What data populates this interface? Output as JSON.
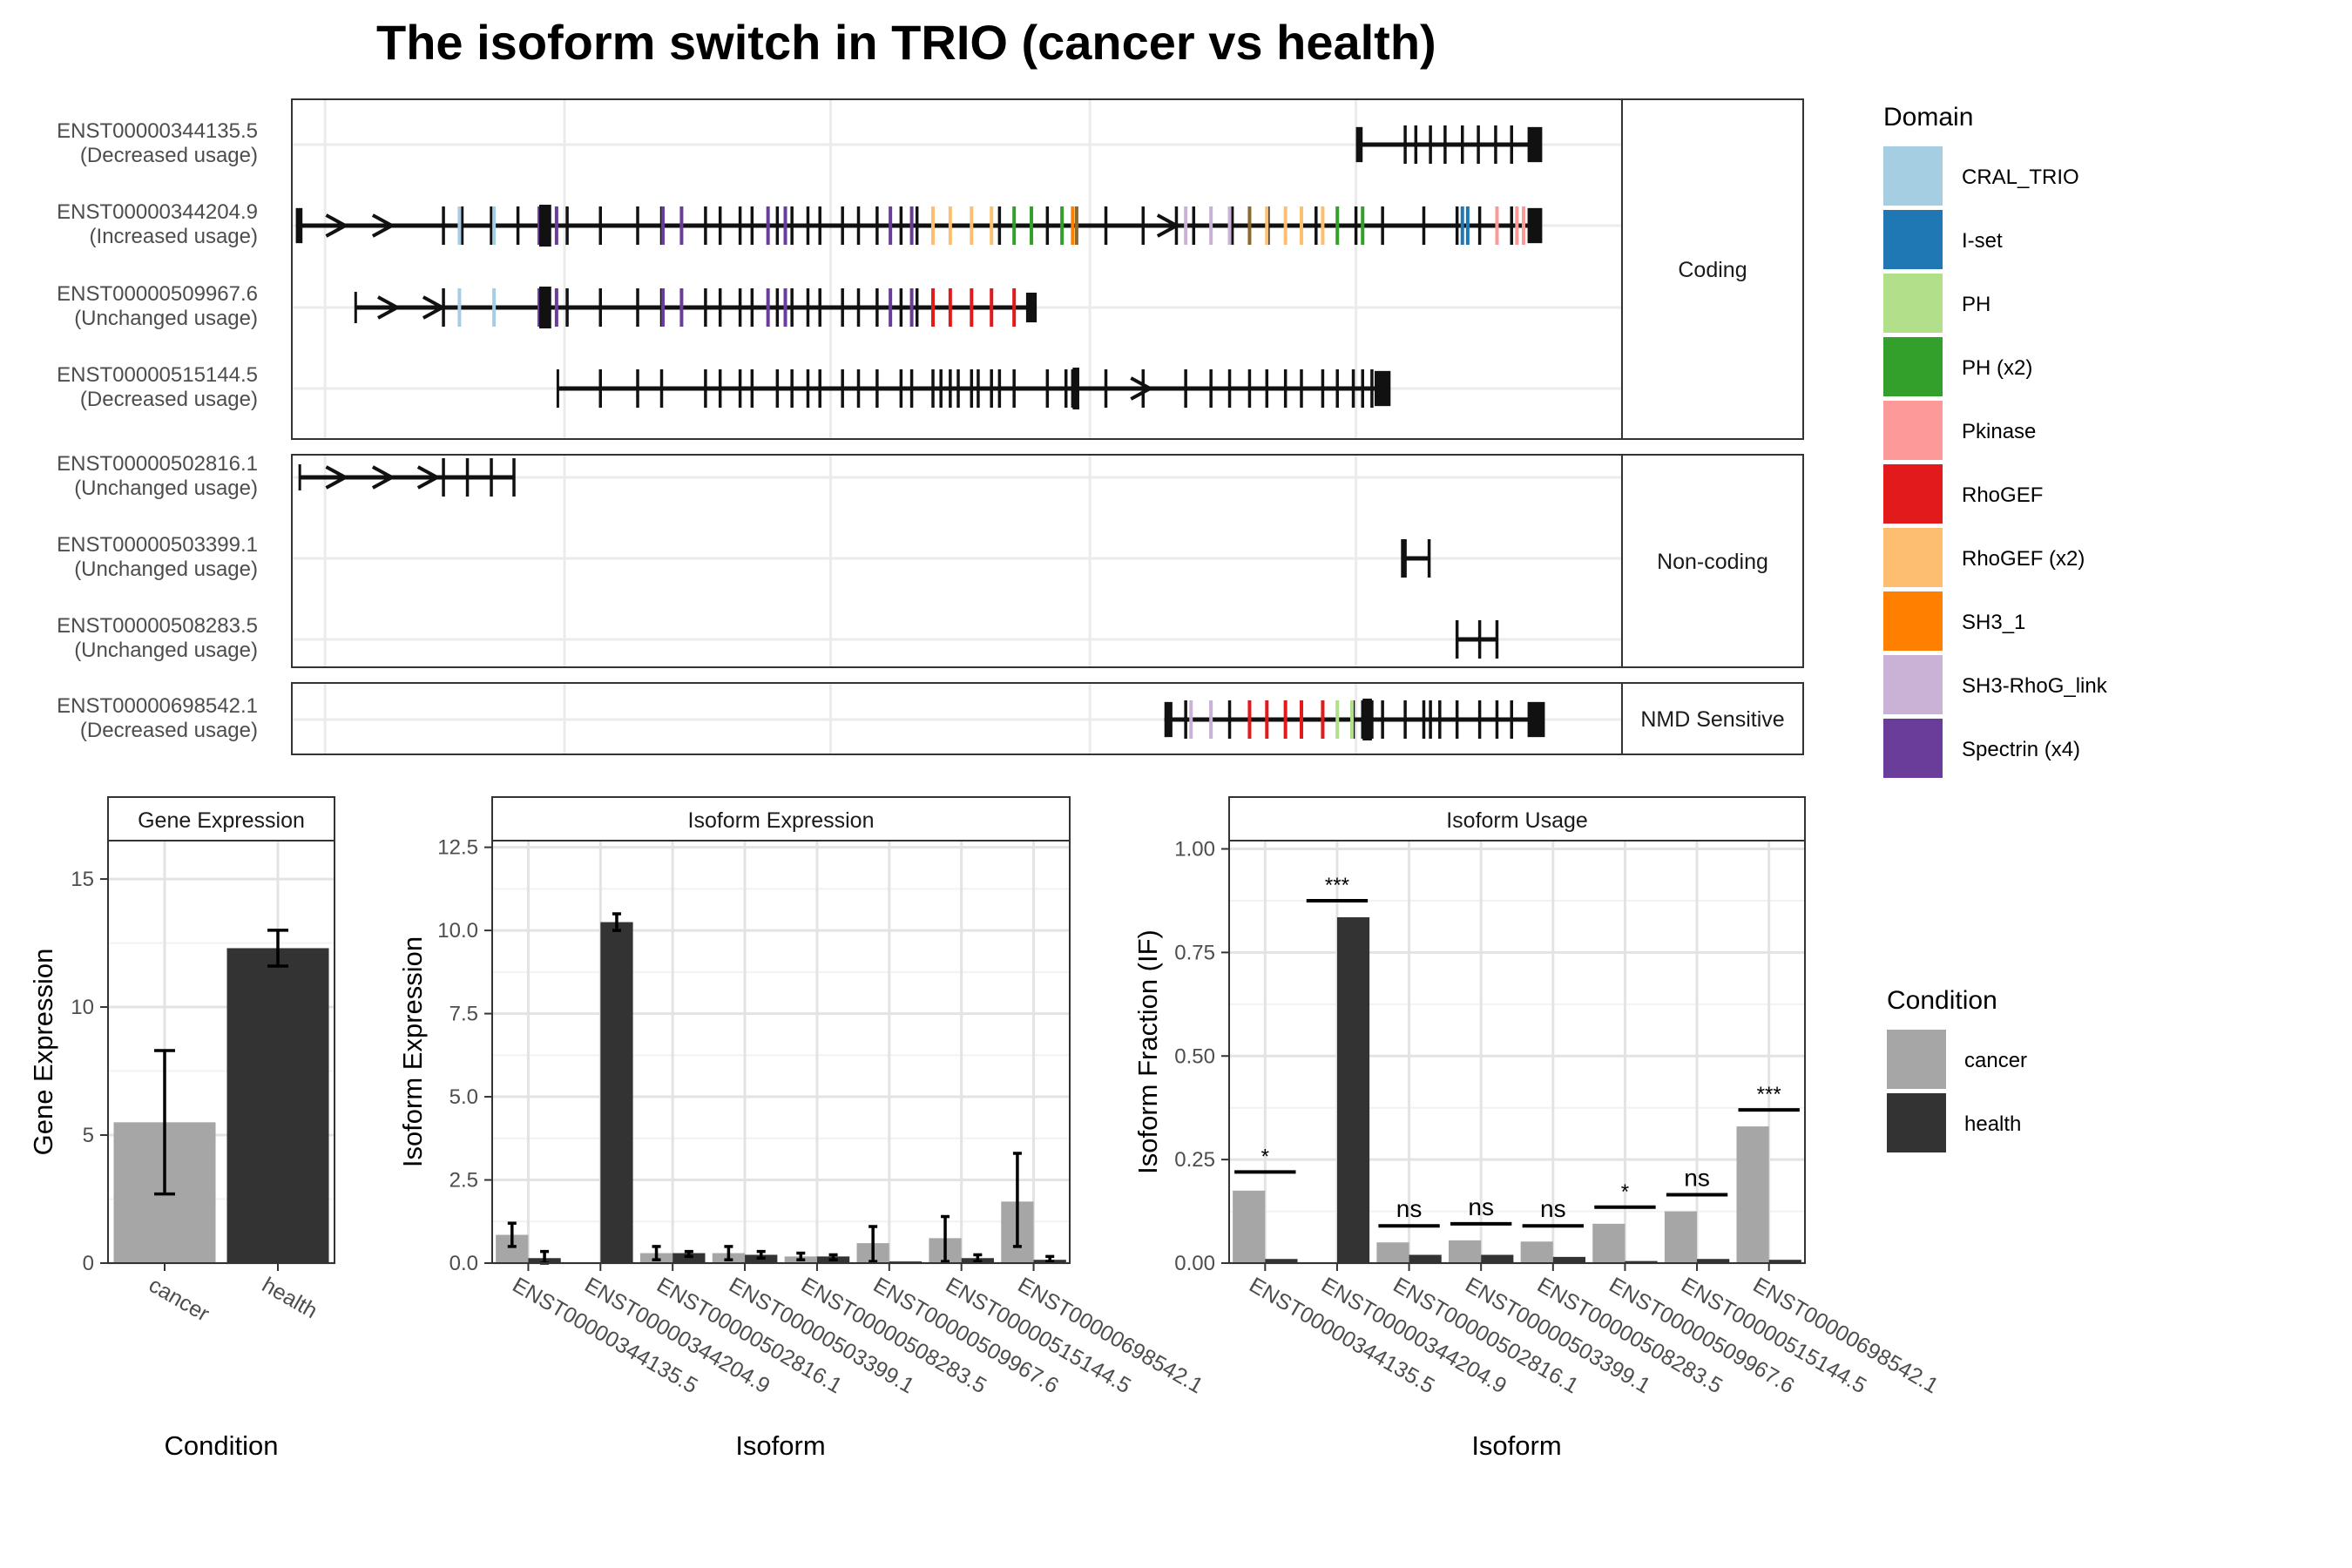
{
  "title": "The isoform switch in TRIO (cancer vs health)",
  "structure": {
    "isoforms": [
      {
        "id": "ENST00000344135.5",
        "usage": "(Decreased usage)",
        "group": "Coding",
        "introns": [
          [
            800,
            930
          ]
        ],
        "exons": [
          [
            800,
            805,
            26
          ],
          [
            929,
            940,
            26
          ]
        ],
        "tics": [
          837,
          845,
          856,
          867,
          880,
          892,
          905,
          917
        ]
      },
      {
        "id": "ENST00000344204.9",
        "usage": "(Increased usage)",
        "group": "Coding",
        "introns": [
          [
            6,
            930
          ]
        ],
        "exons": [
          [
            3,
            8,
            26
          ],
          [
            929,
            940,
            26
          ]
        ],
        "arrows": [
          35,
          70,
          660
        ],
        "tics": [
          114,
          128,
          150,
          170,
          207,
          232,
          260,
          278,
          311,
          322,
          337,
          346,
          365,
          376,
          388,
          397,
          414,
          426,
          440,
          458,
          470,
          532,
          568,
          612,
          640,
          665,
          678,
          707,
          734,
          770,
          800,
          820,
          851,
          876,
          893,
          917
        ],
        "tics_colored": [
          [
            126,
            "#a6cee3"
          ],
          [
            152,
            "#a6cee3"
          ],
          [
            186,
            "#6a3d9a"
          ],
          [
            199,
            "#6a3d9a"
          ],
          [
            279,
            "#6a3d9a"
          ],
          [
            293,
            "#6a3d9a"
          ],
          [
            358,
            "#6a3d9a"
          ],
          [
            371,
            "#6a3d9a"
          ],
          [
            450,
            "#6a3d9a"
          ],
          [
            466,
            "#6a3d9a"
          ],
          [
            482,
            "#fdbf6f"
          ],
          [
            495,
            "#fdbf6f"
          ],
          [
            511,
            "#fdbf6f"
          ],
          [
            526,
            "#fdbf6f"
          ],
          [
            543,
            "#33a02c"
          ],
          [
            556,
            "#33a02c"
          ],
          [
            579,
            "#33a02c"
          ],
          [
            587,
            "#ff7f00"
          ],
          [
            590,
            "#8c6a2e"
          ],
          [
            672,
            "#cab2d6"
          ],
          [
            691,
            "#cab2d6"
          ],
          [
            705,
            "#cab2d6"
          ],
          [
            720,
            "#8c6a2e"
          ],
          [
            733,
            "#fdbf6f"
          ],
          [
            747,
            "#fdbf6f"
          ],
          [
            759,
            "#fdbf6f"
          ],
          [
            775,
            "#fdbf6f"
          ],
          [
            786,
            "#33a02c"
          ],
          [
            805,
            "#33a02c"
          ],
          [
            880,
            "#1f78b4"
          ],
          [
            884,
            "#1f78b4"
          ],
          [
            906,
            "#fb9a99"
          ],
          [
            921,
            "#fb9a99"
          ],
          [
            926,
            "#fb9a99"
          ]
        ],
        "block": [
          186,
          195
        ]
      },
      {
        "id": "ENST00000509967.6",
        "usage": "(Unchanged usage)",
        "group": "Coding",
        "introns": [
          [
            48,
            557
          ]
        ],
        "exons": [
          [
            552,
            560,
            22
          ]
        ],
        "arrows": [
          74,
          108
        ],
        "start_tick": [
          48,
          36
        ],
        "tics": [
          114,
          207,
          232,
          260,
          278,
          311,
          322,
          337,
          346,
          365,
          376,
          388,
          397,
          414,
          426,
          440,
          458,
          470
        ],
        "tics_colored": [
          [
            126,
            "#a6cee3"
          ],
          [
            152,
            "#a6cee3"
          ],
          [
            186,
            "#6a3d9a"
          ],
          [
            199,
            "#6a3d9a"
          ],
          [
            279,
            "#6a3d9a"
          ],
          [
            293,
            "#6a3d9a"
          ],
          [
            358,
            "#6a3d9a"
          ],
          [
            371,
            "#6a3d9a"
          ],
          [
            450,
            "#6a3d9a"
          ],
          [
            466,
            "#6a3d9a"
          ],
          [
            482,
            "#e31a1c"
          ],
          [
            495,
            "#e31a1c"
          ],
          [
            511,
            "#e31a1c"
          ],
          [
            526,
            "#e31a1c"
          ],
          [
            543,
            "#e31a1c"
          ]
        ],
        "block": [
          186,
          195
        ]
      },
      {
        "id": "ENST00000515144.5",
        "usage": "(Decreased usage)",
        "group": "Coding",
        "introns": [
          [
            200,
            815
          ]
        ],
        "exons": [
          [
            814,
            826,
            26
          ]
        ],
        "arrows": [
          640
        ],
        "start_tick": [
          200,
          44
        ],
        "tics": [
          232,
          260,
          278,
          311,
          322,
          337,
          346,
          365,
          376,
          388,
          397,
          414,
          426,
          440,
          458,
          466,
          482,
          488,
          495,
          501,
          511,
          516,
          526,
          532,
          543,
          568,
          582,
          587,
          612,
          640,
          672,
          691,
          705,
          720,
          733,
          747,
          759,
          775,
          786,
          798,
          805,
          812
        ],
        "tics_colored": [],
        "block": [
          587,
          592
        ]
      },
      {
        "id": "ENST00000502816.1",
        "usage": "(Unchanged usage)",
        "group": "Non-coding",
        "introns": [
          [
            6,
            167
          ]
        ],
        "exons": [],
        "arrows": [
          35,
          70,
          104
        ],
        "start_tick": [
          6,
          30
        ],
        "tics": [
          114,
          132,
          150,
          167
        ],
        "tics_colored": []
      },
      {
        "id": "ENST00000503399.1",
        "usage": "(Unchanged usage)",
        "group": "Non-coding",
        "introns": [
          [
            835,
            855
          ]
        ],
        "exons": [],
        "tics": [
          835,
          837,
          855
        ],
        "tics_colored": []
      },
      {
        "id": "ENST00000508283.5",
        "usage": "(Unchanged usage)",
        "group": "Non-coding",
        "introns": [
          [
            876,
            906
          ]
        ],
        "exons": [],
        "tics": [
          876,
          893,
          906
        ],
        "tics_colored": []
      },
      {
        "id": "ENST00000698542.1",
        "usage": "(Decreased usage)",
        "group": "NMD Sensitive",
        "introns": [
          [
            656,
            930
          ]
        ],
        "exons": [
          [
            656,
            662,
            26
          ],
          [
            929,
            942,
            26
          ]
        ],
        "tics": [
          672,
          691,
          705,
          720,
          733,
          747,
          759,
          775,
          786,
          798,
          805,
          812,
          820,
          837,
          851,
          856,
          863,
          876,
          893,
          906,
          917
        ],
        "tics_colored": [
          [
            676,
            "#cab2d6"
          ],
          [
            691,
            "#cab2d6"
          ],
          [
            720,
            "#e31a1c"
          ],
          [
            733,
            "#e31a1c"
          ],
          [
            747,
            "#e31a1c"
          ],
          [
            759,
            "#e31a1c"
          ],
          [
            775,
            "#e31a1c"
          ],
          [
            786,
            "#b2df8a"
          ],
          [
            797,
            "#b2df8a"
          ]
        ],
        "block": [
          805,
          812
        ]
      }
    ],
    "groups": [
      "Coding",
      "Non-coding",
      "NMD Sensitive"
    ]
  },
  "domain_legend": {
    "title": "Domain",
    "items": [
      {
        "label": "CRAL_TRIO",
        "color": "#a6cee3"
      },
      {
        "label": "I-set",
        "color": "#1f78b4"
      },
      {
        "label": "PH",
        "color": "#b2df8a"
      },
      {
        "label": "PH (x2)",
        "color": "#33a02c"
      },
      {
        "label": "Pkinase",
        "color": "#fb9a99"
      },
      {
        "label": "RhoGEF",
        "color": "#e31a1c"
      },
      {
        "label": "RhoGEF (x2)",
        "color": "#fdbf6f"
      },
      {
        "label": "SH3_1",
        "color": "#ff7f00"
      },
      {
        "label": "SH3-RhoG_link",
        "color": "#cab2d6"
      },
      {
        "label": "Spectrin (x4)",
        "color": "#6a3d9a"
      }
    ]
  },
  "condition_legend": {
    "title": "Condition",
    "items": [
      {
        "label": "cancer",
        "color": "#a6a6a6"
      },
      {
        "label": "health",
        "color": "#333333"
      }
    ]
  },
  "chart_data": [
    {
      "type": "bar",
      "strip": "Gene Expression",
      "xlabel": "Condition",
      "ylabel": "Gene Expression",
      "ylim": [
        0,
        16.5
      ],
      "yticks": [
        0,
        5,
        10,
        15
      ],
      "categories": [
        "cancer",
        "health"
      ],
      "values": [
        5.5,
        12.3
      ],
      "errors": [
        [
          2.7,
          8.3
        ],
        [
          11.6,
          13.0
        ]
      ]
    },
    {
      "type": "bar",
      "strip": "Isoform Expression",
      "xlabel": "Isoform",
      "ylabel": "Isoform Expression",
      "ylim": [
        0,
        12.7
      ],
      "yticks": [
        0.0,
        2.5,
        5.0,
        7.5,
        10.0,
        12.5
      ],
      "ytick_labels": [
        "0.0",
        "2.5",
        "5.0",
        "7.5",
        "10.0",
        "12.5"
      ],
      "categories": [
        "ENST00000344135.5",
        "ENST00000344204.9",
        "ENST00000502816.1",
        "ENST00000503399.1",
        "ENST00000508283.5",
        "ENST00000509967.6",
        "ENST00000515144.5",
        "ENST00000698542.1"
      ],
      "series": [
        {
          "name": "cancer",
          "values": [
            0.85,
            0.0,
            0.3,
            0.3,
            0.2,
            0.6,
            0.75,
            1.85
          ],
          "errors": [
            [
              0.5,
              1.2
            ],
            null,
            [
              0.1,
              0.5
            ],
            [
              0.1,
              0.5
            ],
            [
              0.1,
              0.3
            ],
            [
              0.05,
              1.1
            ],
            [
              0.05,
              1.4
            ],
            [
              0.5,
              3.3
            ]
          ]
        },
        {
          "name": "health",
          "values": [
            0.15,
            10.25,
            0.3,
            0.25,
            0.2,
            0.05,
            0.15,
            0.1
          ],
          "errors": [
            [
              0.0,
              0.35
            ],
            [
              10.0,
              10.5
            ],
            [
              0.2,
              0.35
            ],
            [
              0.15,
              0.35
            ],
            [
              0.1,
              0.25
            ],
            null,
            [
              0.05,
              0.25
            ],
            [
              0.05,
              0.2
            ]
          ]
        }
      ]
    },
    {
      "type": "bar",
      "strip": "Isoform Usage",
      "xlabel": "Isoform",
      "ylabel": "Isoform Fraction (IF)",
      "ylim": [
        0,
        1.02
      ],
      "yticks": [
        0.0,
        0.25,
        0.5,
        0.75,
        1.0
      ],
      "ytick_labels": [
        "0.00",
        "0.25",
        "0.50",
        "0.75",
        "1.00"
      ],
      "categories": [
        "ENST00000344135.5",
        "ENST00000344204.9",
        "ENST00000502816.1",
        "ENST00000503399.1",
        "ENST00000508283.5",
        "ENST00000509967.6",
        "ENST00000515144.5",
        "ENST00000698542.1"
      ],
      "series": [
        {
          "name": "cancer",
          "values": [
            0.175,
            0.0,
            0.05,
            0.055,
            0.052,
            0.095,
            0.125,
            0.33
          ]
        },
        {
          "name": "health",
          "values": [
            0.01,
            0.835,
            0.02,
            0.02,
            0.015,
            0.005,
            0.01,
            0.008
          ]
        }
      ],
      "significance": [
        "*",
        "***",
        "ns",
        "ns",
        "ns",
        "*",
        "ns",
        "***"
      ],
      "significance_y": [
        0.22,
        0.875,
        0.09,
        0.095,
        0.09,
        0.135,
        0.165,
        0.37
      ]
    }
  ]
}
